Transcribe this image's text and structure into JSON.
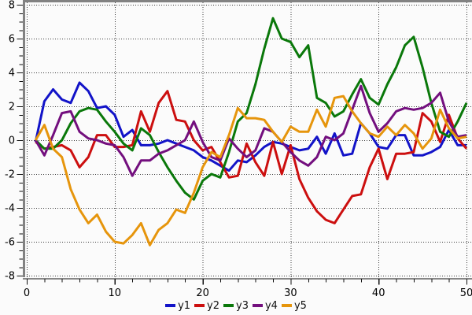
{
  "chart_data": {
    "type": "line",
    "title": "",
    "xlabel": "",
    "ylabel": "",
    "x_start": 1,
    "x_step": 1,
    "x_axis": {
      "ticks": [
        0,
        10,
        20,
        30,
        40,
        50
      ],
      "minor_step": 2,
      "range": [
        0,
        50
      ]
    },
    "y_axis": {
      "ticks": [
        -8,
        -6,
        -4,
        -2,
        0,
        2,
        4,
        6,
        8
      ],
      "minor_step": 0.5,
      "range": [
        -8,
        8
      ]
    },
    "grid": "dotted",
    "legend_position": "bottom-center",
    "series": [
      {
        "name": "y1",
        "color": "#1213c8",
        "values": [
          -0.1,
          2.3,
          3.0,
          2.4,
          2.2,
          3.4,
          2.9,
          1.9,
          2.0,
          1.5,
          0.2,
          0.6,
          -0.3,
          -0.3,
          -0.2,
          0.0,
          -0.2,
          -0.4,
          -0.6,
          -1.0,
          -1.2,
          -1.5,
          -1.8,
          -1.2,
          -1.3,
          -0.9,
          -0.4,
          -0.1,
          -0.2,
          -0.4,
          -0.6,
          -0.5,
          0.2,
          -0.8,
          0.4,
          -0.9,
          -0.8,
          1.0,
          0.4,
          -0.4,
          -0.5,
          0.3,
          0.3,
          -0.9,
          -0.9,
          -0.7,
          -0.4,
          0.6,
          -0.3,
          -0.3
        ]
      },
      {
        "name": "y2",
        "color": "#cc0f0f",
        "values": [
          -0.1,
          -0.5,
          -0.4,
          -0.3,
          -0.6,
          -1.6,
          -1.0,
          0.3,
          0.3,
          -0.4,
          -0.4,
          -0.3,
          1.7,
          0.5,
          2.2,
          2.9,
          1.2,
          1.1,
          0.0,
          -0.6,
          -0.4,
          -1.3,
          -2.2,
          -2.1,
          -0.2,
          -1.3,
          -2.1,
          -0.1,
          -2.0,
          -0.3,
          -2.3,
          -3.4,
          -4.2,
          -4.7,
          -4.9,
          -4.1,
          -3.3,
          -3.2,
          -1.6,
          -0.5,
          -2.3,
          -0.8,
          -0.8,
          -0.7,
          1.6,
          1.1,
          -0.1,
          1.5,
          0.1,
          -0.5
        ]
      },
      {
        "name": "y3",
        "color": "#0a780a",
        "values": [
          0.0,
          -0.5,
          -0.5,
          0.0,
          1.0,
          1.7,
          1.9,
          1.8,
          1.1,
          0.5,
          -0.2,
          -0.6,
          0.7,
          0.3,
          -0.7,
          -1.6,
          -2.4,
          -3.1,
          -3.5,
          -2.4,
          -2.0,
          -2.2,
          -0.7,
          1.1,
          1.6,
          3.3,
          5.4,
          7.2,
          6.0,
          5.8,
          4.9,
          5.6,
          2.5,
          2.2,
          1.4,
          1.7,
          2.7,
          3.6,
          2.5,
          2.1,
          3.3,
          4.3,
          5.6,
          6.1,
          4.3,
          2.2,
          0.5,
          0.2,
          1.1,
          2.2
        ]
      },
      {
        "name": "y4",
        "color": "#730f7e",
        "values": [
          0.0,
          -0.9,
          0.3,
          1.6,
          1.7,
          0.5,
          0.1,
          0.0,
          -0.2,
          -0.3,
          -1.0,
          -2.1,
          -1.2,
          -1.2,
          -0.8,
          -0.6,
          -0.3,
          0.0,
          1.1,
          -0.1,
          -1.0,
          -1.2,
          0.1,
          -0.5,
          -1.0,
          -0.6,
          0.7,
          0.5,
          -0.1,
          -0.7,
          -1.2,
          -1.5,
          -1.0,
          0.2,
          0.0,
          0.4,
          1.8,
          3.2,
          1.6,
          0.5,
          1.0,
          1.7,
          1.9,
          1.8,
          1.9,
          2.2,
          2.8,
          1.1,
          0.2,
          0.3
        ]
      },
      {
        "name": "y5",
        "color": "#e6950c",
        "values": [
          0.0,
          0.9,
          -0.5,
          -1.0,
          -2.9,
          -4.1,
          -4.9,
          -4.4,
          -5.4,
          -6.0,
          -6.1,
          -5.6,
          -4.9,
          -6.2,
          -5.3,
          -4.9,
          -4.1,
          -4.3,
          -3.1,
          -1.6,
          -0.7,
          -1.0,
          0.3,
          1.9,
          1.3,
          1.3,
          1.2,
          0.5,
          -0.1,
          0.8,
          0.5,
          0.5,
          1.8,
          0.8,
          2.5,
          2.6,
          1.7,
          1.0,
          0.4,
          0.2,
          0.8,
          0.3,
          0.9,
          0.4,
          -0.5,
          0.1,
          1.8,
          0.7,
          0.1,
          0.2
        ]
      }
    ]
  },
  "styles": {
    "background": "#fbfbfb",
    "border_color": "#828282",
    "axis_color": "#111111",
    "grid_color": "#3c3c3c",
    "tick_label_color": "#000000",
    "series_stroke_width": 3
  }
}
